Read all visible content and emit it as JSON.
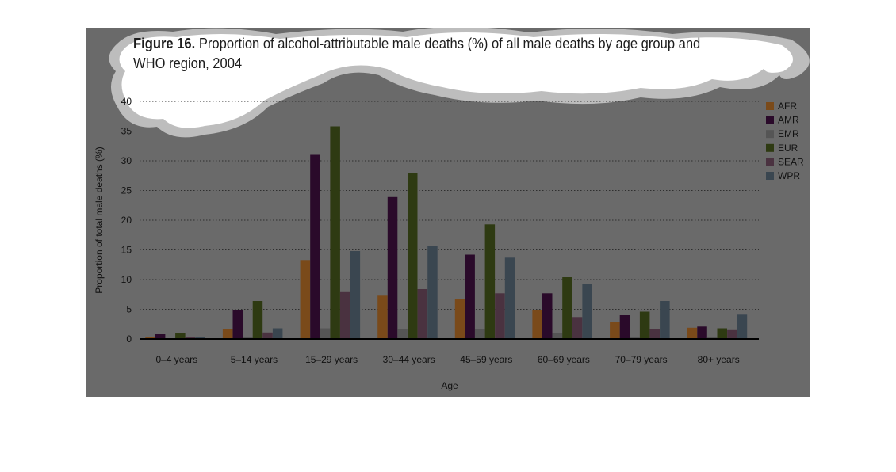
{
  "title": {
    "figure_label": "Figure 16.",
    "text": "Proportion of alcohol-attributable male deaths (%) of all male deaths by age group and WHO region, 2004"
  },
  "colors": {
    "background": "#6a6a6a",
    "cloud": "#ffffff",
    "cloud_outline": "#bdbdbd",
    "grid": "#2e2e2e",
    "axis": "#000000"
  },
  "chart_data": {
    "type": "bar",
    "xlabel": "Age",
    "ylabel": "Proportion of total male deaths (%)",
    "ylim": [
      0,
      40
    ],
    "yticks": [
      0,
      5,
      10,
      15,
      20,
      25,
      30,
      35,
      40
    ],
    "grid": true,
    "legend_position": "right",
    "categories": [
      "0–4 years",
      "5–14 years",
      "15–29 years",
      "30–44 years",
      "45–59 years",
      "60–69 years",
      "70–79 years",
      "80+ years"
    ],
    "series": [
      {
        "name": "AFR",
        "color": "#7a4a1a",
        "values": [
          0.3,
          1.6,
          13.3,
          7.3,
          6.8,
          4.9,
          2.8,
          1.9
        ]
      },
      {
        "name": "AMR",
        "color": "#2a0a2a",
        "values": [
          0.8,
          4.8,
          31.0,
          23.9,
          14.2,
          7.7,
          4.0,
          2.1
        ]
      },
      {
        "name": "EMR",
        "color": "#555555",
        "values": [
          0.1,
          0.3,
          1.8,
          1.7,
          1.7,
          1.0,
          0.4,
          0.3
        ]
      },
      {
        "name": "EUR",
        "color": "#2e3a12",
        "values": [
          1.0,
          6.4,
          35.8,
          28.0,
          19.3,
          10.4,
          4.6,
          1.8
        ]
      },
      {
        "name": "SEAR",
        "color": "#4a3240",
        "values": [
          0.3,
          1.1,
          7.9,
          8.4,
          7.7,
          3.7,
          1.7,
          1.5
        ]
      },
      {
        "name": "WPR",
        "color": "#3a4650",
        "values": [
          0.4,
          1.8,
          14.8,
          15.7,
          13.7,
          9.3,
          6.4,
          4.1
        ]
      }
    ]
  }
}
